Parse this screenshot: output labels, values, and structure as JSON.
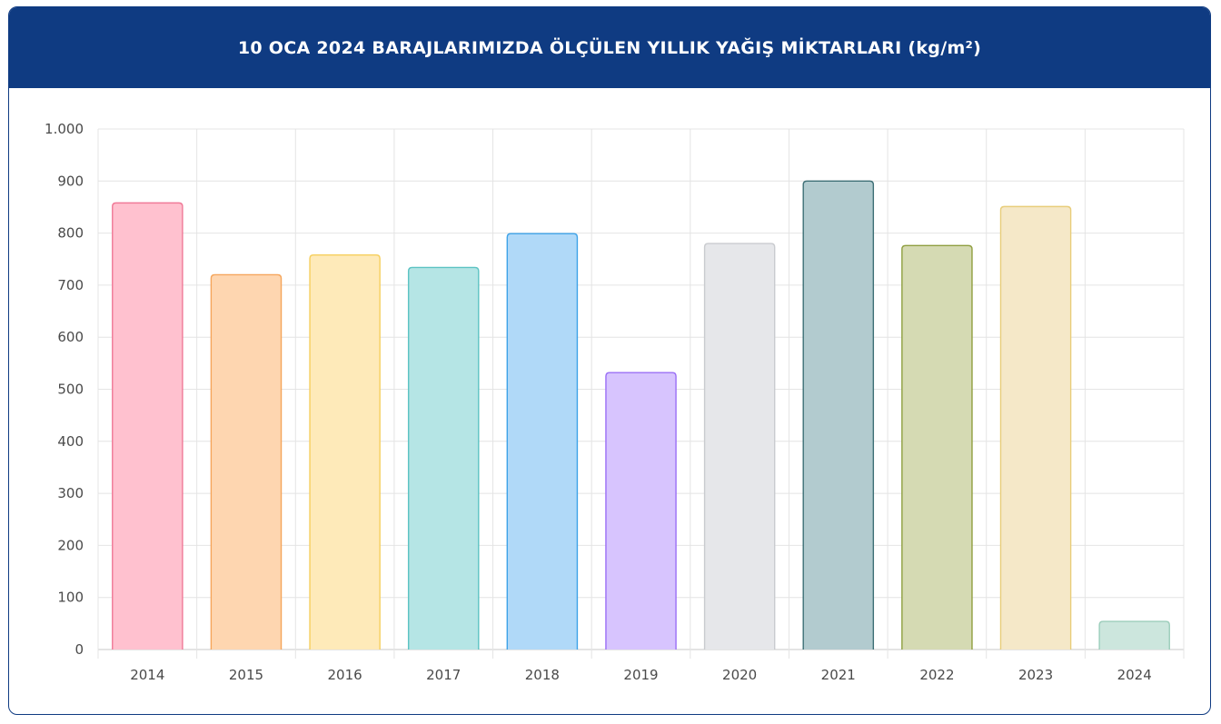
{
  "header": {
    "title": "10 OCA 2024 BARAJLARIMIZDA ÖLÇÜLEN YILLIK YAĞIŞ MİKTARLARI (kg/m²)"
  },
  "chart_data": {
    "type": "bar",
    "title": "10 OCA 2024 BARAJLARIMIZDA ÖLÇÜLEN YILLIK YAĞIŞ MİKTARLARI (kg/m²)",
    "categories": [
      "2014",
      "2015",
      "2016",
      "2017",
      "2018",
      "2019",
      "2020",
      "2021",
      "2022",
      "2023",
      "2024"
    ],
    "values": [
      858,
      720,
      758,
      734,
      799,
      532,
      780,
      900,
      776,
      851,
      54
    ],
    "ylim": [
      0,
      1000
    ],
    "yticks": [
      0,
      100,
      200,
      300,
      400,
      500,
      600,
      700,
      800,
      900,
      1000
    ],
    "ytick_labels": [
      "0",
      "100",
      "200",
      "300",
      "400",
      "500",
      "600",
      "700",
      "800",
      "900",
      "1.000"
    ],
    "grid": true,
    "legend": "none",
    "colors": {
      "fills": [
        "#ffc1cf",
        "#fed6b0",
        "#feeab9",
        "#b5e5e5",
        "#b0d9f8",
        "#d7c4fe",
        "#e6e7ea",
        "#b2cbcf",
        "#d5dab3",
        "#f5e8c8",
        "#cce6dd"
      ],
      "strokes": [
        "#f07a97",
        "#f5a55b",
        "#f6cf5e",
        "#5cc3c3",
        "#3ea3e8",
        "#9a6ff5",
        "#c9cbcf",
        "#3e6f76",
        "#8f9e3f",
        "#e8cd7a",
        "#9ccdbb"
      ]
    }
  }
}
